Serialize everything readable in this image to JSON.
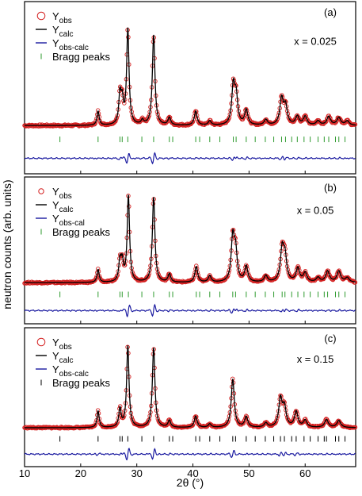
{
  "figure": {
    "ylabel": "neutron counts (arb. units)",
    "xlabel": "2θ (°)",
    "xlim": [
      10,
      69
    ],
    "xticks": [
      10,
      20,
      30,
      40,
      50,
      60
    ]
  },
  "legend_text": {
    "obs_main": "Y",
    "obs_sub": "obs",
    "calc_main": "Y",
    "calc_sub": "calc",
    "diff_main": "Y",
    "bragg": "Bragg peaks"
  },
  "colors": {
    "obs": "#d42020",
    "calc": "#000000",
    "diff": "#1a1aa0",
    "bragg": "#2e9a2e",
    "frame": "#000000"
  },
  "chart_data": [
    {
      "type": "line",
      "panel_label": "(a)",
      "annotation": "x = 0.025",
      "diff_sub": "obs-calc",
      "bragg_marker": "green-tick",
      "series": [
        {
          "name": "Yobs",
          "marker": "open-circle"
        },
        {
          "name": "Ycalc",
          "line": "black"
        },
        {
          "name": "Yobs-calc",
          "line": "blue"
        },
        {
          "name": "Bragg peaks",
          "marker": "tick"
        }
      ],
      "baseline": 8,
      "peaks": [
        [
          23.1,
          13
        ],
        [
          27.0,
          27
        ],
        [
          27.4,
          20
        ],
        [
          28.4,
          88
        ],
        [
          31.0,
          4
        ],
        [
          33.0,
          83
        ],
        [
          35.8,
          7
        ],
        [
          40.5,
          13
        ],
        [
          43.0,
          4
        ],
        [
          47.2,
          35
        ],
        [
          47.7,
          25
        ],
        [
          49.5,
          14
        ],
        [
          53.0,
          5
        ],
        [
          55.8,
          24
        ],
        [
          56.5,
          17
        ],
        [
          58.6,
          8
        ],
        [
          60.0,
          8
        ],
        [
          62.3,
          4
        ],
        [
          64.2,
          8
        ],
        [
          66.0,
          7
        ],
        [
          67.5,
          4
        ]
      ],
      "bragg_positions": [
        16.3,
        23.1,
        27.0,
        27.4,
        28.4,
        30.9,
        33.0,
        35.8,
        36.4,
        40.5,
        41.2,
        43.0,
        44.8,
        47.2,
        47.7,
        49.5,
        51.1,
        52.9,
        54.4,
        55.8,
        56.5,
        57.6,
        58.6,
        59.8,
        60.9,
        62.3,
        63.4,
        64.2,
        65.4,
        66.0,
        67.1
      ]
    },
    {
      "type": "line",
      "panel_label": "(b)",
      "annotation": "x = 0.05",
      "diff_sub": "obs-cal",
      "bragg_marker": "green-tick",
      "series": [
        {
          "name": "Yobs",
          "marker": "open-circle"
        },
        {
          "name": "Ycalc",
          "line": "black"
        },
        {
          "name": "Yobs-cal",
          "line": "blue"
        },
        {
          "name": "Bragg peaks",
          "marker": "tick"
        }
      ],
      "baseline": 8,
      "peaks": [
        [
          23.1,
          14
        ],
        [
          27.0,
          22
        ],
        [
          27.4,
          20
        ],
        [
          28.5,
          93
        ],
        [
          33.0,
          92
        ],
        [
          35.8,
          9
        ],
        [
          40.6,
          17
        ],
        [
          43.0,
          7
        ],
        [
          47.1,
          47
        ],
        [
          47.6,
          32
        ],
        [
          49.5,
          17
        ],
        [
          53.0,
          7
        ],
        [
          55.9,
          34
        ],
        [
          56.4,
          26
        ],
        [
          58.7,
          15
        ],
        [
          60.0,
          10
        ],
        [
          62.3,
          5
        ],
        [
          64.0,
          12
        ],
        [
          66.0,
          12
        ],
        [
          67.5,
          5
        ]
      ],
      "bragg_positions": [
        16.3,
        23.1,
        27.0,
        27.4,
        28.5,
        30.9,
        33.0,
        35.8,
        36.4,
        40.6,
        41.2,
        43.0,
        44.8,
        47.1,
        47.6,
        49.5,
        51.1,
        52.9,
        54.4,
        55.9,
        56.4,
        57.6,
        58.7,
        59.8,
        60.9,
        62.3,
        63.4,
        64.0,
        65.4,
        66.0,
        67.1
      ]
    },
    {
      "type": "line",
      "panel_label": "(c)",
      "annotation": "x = 0.15",
      "diff_sub": "obs-calc",
      "bragg_marker": "black-tick",
      "series": [
        {
          "name": "Yobs",
          "marker": "open-circle"
        },
        {
          "name": "Ycalc",
          "line": "black"
        },
        {
          "name": "Yobs-calc",
          "line": "blue"
        },
        {
          "name": "Bragg peaks",
          "marker": "tick"
        }
      ],
      "baseline": 8,
      "peaks": [
        [
          23.1,
          19
        ],
        [
          27.0,
          21
        ],
        [
          28.4,
          93
        ],
        [
          33.0,
          91
        ],
        [
          35.8,
          8
        ],
        [
          40.5,
          13
        ],
        [
          43.0,
          4
        ],
        [
          47.1,
          55
        ],
        [
          49.5,
          12
        ],
        [
          53.0,
          5
        ],
        [
          55.6,
          32
        ],
        [
          56.3,
          22
        ],
        [
          58.4,
          18
        ],
        [
          60.0,
          8
        ],
        [
          63.8,
          9
        ],
        [
          66.0,
          8
        ]
      ],
      "bragg_positions": [
        16.3,
        23.1,
        27.0,
        27.4,
        28.4,
        30.9,
        33.0,
        35.8,
        36.4,
        40.5,
        41.2,
        43.0,
        44.8,
        47.1,
        47.6,
        49.5,
        51.1,
        52.9,
        54.4,
        55.6,
        56.3,
        57.6,
        58.4,
        59.8,
        60.9,
        62.3,
        63.4,
        63.8,
        65.4,
        66.0,
        67.1
      ]
    }
  ]
}
